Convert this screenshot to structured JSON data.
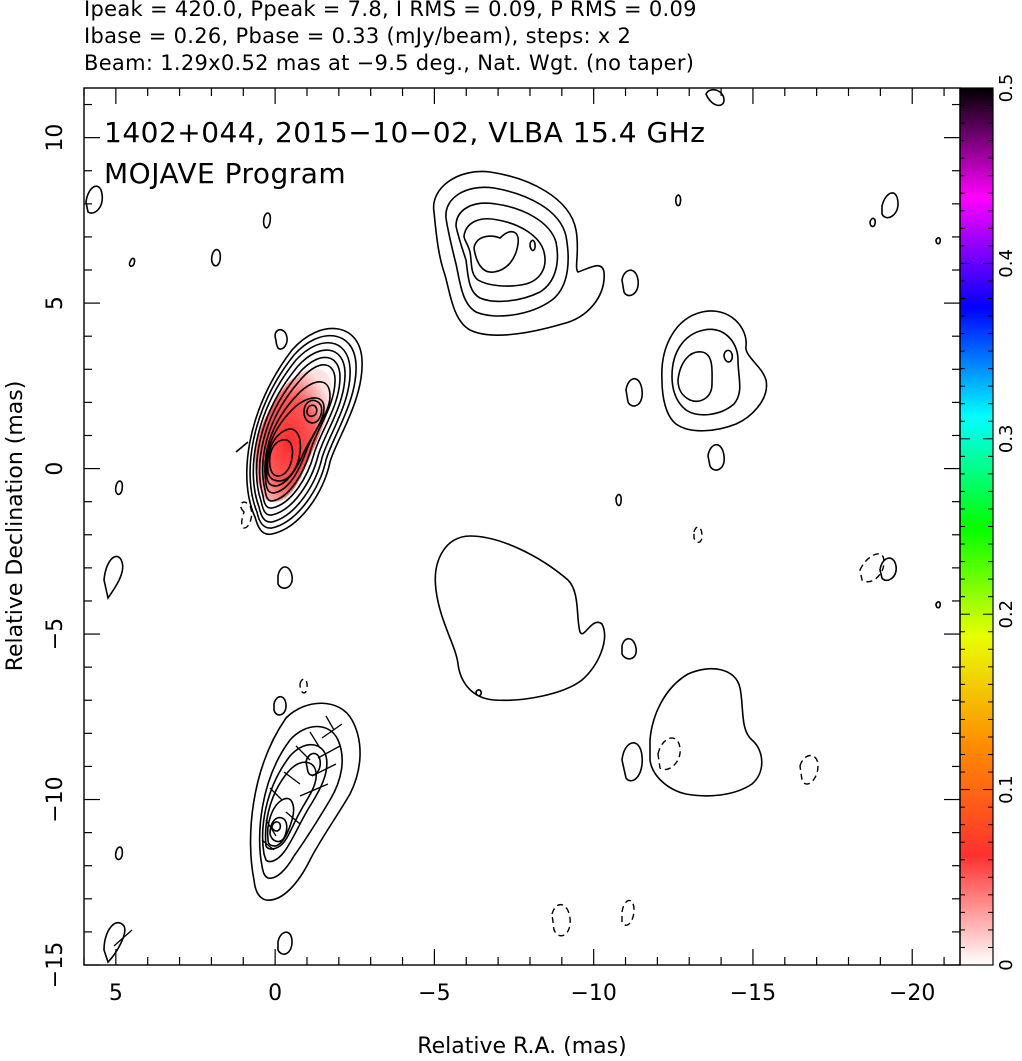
{
  "header": {
    "line1": "Ipeak = 420.0, Ppeak = 7.8, I RMS = 0.09, P RMS = 0.09",
    "line2": "Ibase = 0.26, Pbase = 0.33 (mJy/beam), steps: x 2",
    "line3": "Beam: 1.29x0.52 mas at −9.5 deg., Nat. Wgt. (no taper)"
  },
  "chart_data": {
    "type": "contour",
    "xlabel": "Relative R.A. (mas)",
    "ylabel": "Relative Declination (mas)",
    "xlim": [
      6,
      -21.5
    ],
    "ylim": [
      -15,
      11.5
    ],
    "xticks": [
      {
        "value": 5,
        "label": "5"
      },
      {
        "value": 0,
        "label": "0"
      },
      {
        "value": -5,
        "label": "−5"
      },
      {
        "value": -10,
        "label": "−10"
      },
      {
        "value": -15,
        "label": "−15"
      },
      {
        "value": -20,
        "label": "−20"
      }
    ],
    "yticks": [
      {
        "value": 10,
        "label": "10"
      },
      {
        "value": 5,
        "label": "5"
      },
      {
        "value": 0,
        "label": "0"
      },
      {
        "value": -5,
        "label": "−5"
      },
      {
        "value": -10,
        "label": "−10"
      },
      {
        "value": -15,
        "label": "−15"
      }
    ],
    "annotations": [
      "1402+044, 2015−10−02, VLBA 15.4 GHz",
      "MOJAVE Program"
    ],
    "colorbar": {
      "range": [
        0,
        0.5
      ],
      "ticks": [
        {
          "value": 0,
          "label": "0"
        },
        {
          "value": 0.1,
          "label": "0.1"
        },
        {
          "value": 0.2,
          "label": "0.2"
        },
        {
          "value": 0.3,
          "label": "0.3"
        },
        {
          "value": 0.4,
          "label": "0.4"
        },
        {
          "value": 0.5,
          "label": "0.5"
        }
      ],
      "colors": [
        "#ffffff",
        "#ff3030",
        "#ff8c00",
        "#e8ff00",
        "#00ff00",
        "#00ffff",
        "#0000ff",
        "#ff00ff",
        "#000000"
      ]
    },
    "contour_image_top": {
      "peak": [
        0,
        0
      ],
      "levels_nested": 9,
      "knots": [
        [
          -1.2,
          1.6
        ]
      ],
      "features": [
        {
          "center": [
            -6.5,
            6.5
          ],
          "levels": 5
        },
        {
          "center": [
            -13.0,
            3.0
          ],
          "levels": 3
        }
      ]
    },
    "contour_image_bottom": {
      "peak": [
        0,
        -11.3
      ],
      "levels_nested": 7,
      "features": [
        {
          "center": [
            -6.5,
            -4.5
          ],
          "levels": 1
        },
        {
          "center": [
            -13.0,
            -8.2
          ],
          "levels": 1
        }
      ]
    },
    "grid": false
  }
}
